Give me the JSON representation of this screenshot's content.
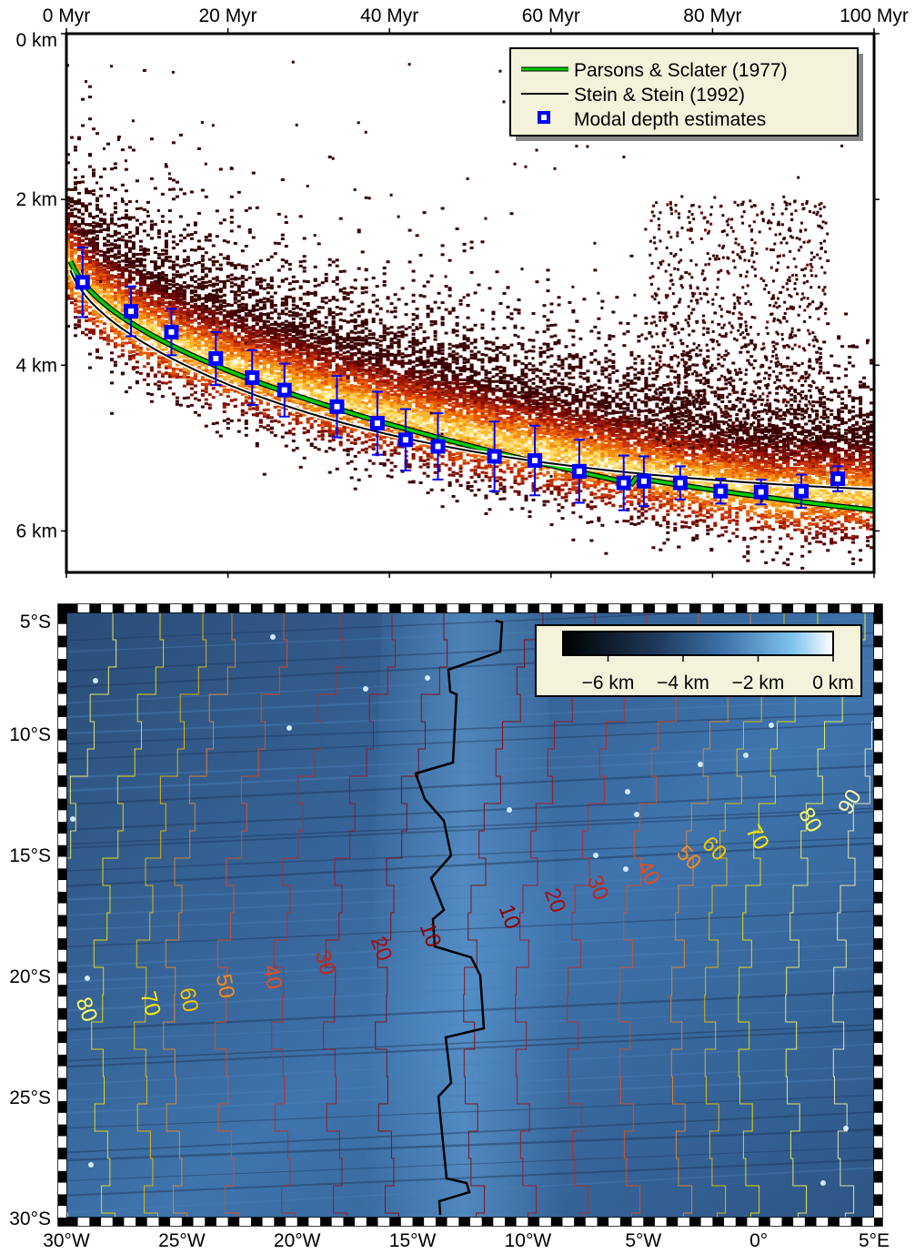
{
  "chart_data": [
    {
      "type": "scatter",
      "title": "",
      "xlabel": "",
      "ylabel": "",
      "x_ticks": [
        "0 Myr",
        "20 Myr",
        "40 Myr",
        "60 Myr",
        "80 Myr",
        "100 Myr"
      ],
      "y_ticks": [
        "0 km",
        "2 km",
        "4 km",
        "6 km"
      ],
      "xlim": [
        0,
        100
      ],
      "ylim": [
        0,
        6.5
      ],
      "y_direction": "depth increases downward",
      "background": "2D histogram density of depth vs crustal age (dark red to yellow)",
      "legend": {
        "placement": "top-right",
        "entries": [
          {
            "label": "Parsons & Sclater (1977)",
            "color": "#00cc00",
            "symbol": "line"
          },
          {
            "label": "Stein & Stein (1992)",
            "color": "#000000",
            "symbol": "line"
          },
          {
            "label": "Modal depth estimates",
            "color": "#0000ff",
            "symbol": "square"
          }
        ]
      },
      "series": [
        {
          "name": "Modal depth estimates",
          "color": "#0000ff",
          "x": [
            2,
            8,
            13,
            18.5,
            23,
            27,
            33.5,
            38.5,
            42,
            46,
            53,
            58,
            63.5,
            69,
            71.5,
            76,
            81,
            86,
            91,
            95.5
          ],
          "y": [
            3.0,
            3.35,
            3.6,
            3.92,
            4.15,
            4.3,
            4.5,
            4.7,
            4.9,
            4.98,
            5.1,
            5.15,
            5.28,
            5.42,
            5.4,
            5.42,
            5.52,
            5.53,
            5.52,
            5.37
          ],
          "y_err": [
            0.42,
            0.3,
            0.28,
            0.32,
            0.33,
            0.32,
            0.37,
            0.38,
            0.37,
            0.4,
            0.42,
            0.42,
            0.38,
            0.33,
            0.3,
            0.2,
            0.15,
            0.15,
            0.2,
            0.15
          ]
        }
      ]
    },
    {
      "type": "heatmap",
      "title": "",
      "x_ticks": [
        "30°W",
        "25°W",
        "20°W",
        "15°W",
        "10°W",
        "5°W",
        "0°",
        "5°E"
      ],
      "y_ticks": [
        "5°S",
        "10°S",
        "15°S",
        "20°S",
        "25°S",
        "30°S"
      ],
      "xlim": [
        -30,
        5
      ],
      "ylim": [
        -30,
        -5
      ],
      "colorbar": {
        "placement": "top-right",
        "ticks": [
          "−6 km",
          "−4 km",
          "−2 km",
          "0 km"
        ],
        "colors": [
          "#000000",
          "#2a4e78",
          "#4e87bd",
          "#ffffff"
        ]
      },
      "contour_labels_west": [
        "10",
        "20",
        "30",
        "40",
        "50",
        "60",
        "70",
        "80"
      ],
      "contour_labels_east": [
        "10",
        "20",
        "30",
        "40",
        "50",
        "60",
        "70",
        "80",
        "90"
      ],
      "contour_colors": [
        "#8b0000",
        "#a50f15",
        "#c0281a",
        "#e64d1a",
        "#f08a24",
        "#f5c300",
        "#ffea00",
        "#ffff66",
        "#fff8b0"
      ]
    }
  ]
}
